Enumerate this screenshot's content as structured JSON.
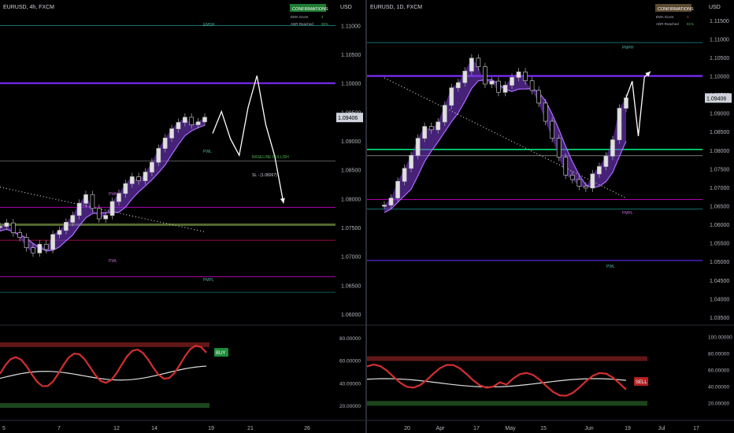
{
  "chart_data": [
    {
      "type": "line",
      "symbol_label": "EURUSD, 4h, FXCM",
      "price_axis_unit": "USD",
      "current_price_label": "1.09406",
      "y_ticks": [
        "1.11000",
        "1.10500",
        "1.10000",
        "1.09500",
        "1.09000",
        "1.08500",
        "1.08000",
        "1.07500",
        "1.07000",
        "1.06500",
        "1.06000"
      ],
      "x_ticks": [
        "5",
        "7",
        "12",
        "14",
        "19",
        "21",
        "26"
      ],
      "confirmations": {
        "title": "CONFIRMATIONS",
        "rows": [
          [
            "EMA Score",
            "4"
          ],
          [
            "ADR Reached",
            "85%"
          ]
        ]
      },
      "level_labels": [
        "EMSH",
        "PWH",
        "PWL",
        "PWL",
        "PMPL"
      ],
      "annotations": [
        "BASELINE BULLISH",
        "SL - (1.08267)"
      ],
      "osc_ticks": [
        "80.00000",
        "60.00000",
        "40.00000",
        "20.00000"
      ],
      "signal": "BUY",
      "series": [
        {
          "values": [
            1.0752,
            1.0758,
            1.0741,
            1.0733,
            1.0715,
            1.0706,
            1.0721,
            1.0712,
            1.0738,
            1.0745,
            1.0759,
            1.0771,
            1.0792,
            1.0807,
            1.0783,
            1.0765,
            1.0771,
            1.0795,
            1.0809,
            1.0826,
            1.0838,
            1.0831,
            1.0846,
            1.0863,
            1.0887,
            1.0905,
            1.0921,
            1.0932,
            1.0941,
            1.0928,
            1.0933,
            1.0941
          ]
        },
        {
          "values": [
            1.0913,
            1.0951,
            1.0904,
            1.0875,
            1.0958,
            1.1013,
            1.0928,
            1.0874,
            1.0792
          ]
        }
      ]
    },
    {
      "type": "line",
      "symbol_label": "EURUSD, 1D, FXCM",
      "price_axis_unit": "USD",
      "current_price_label": "1.09406",
      "y_ticks": [
        "1.11500",
        "1.11000",
        "1.10500",
        "1.10000",
        "1.09500",
        "1.09000",
        "1.08500",
        "1.08000",
        "1.07500",
        "1.07000",
        "1.06500",
        "1.06000",
        "1.05500",
        "1.05000",
        "1.04500",
        "1.04000",
        "1.03500"
      ],
      "x_ticks": [
        "20",
        "Apr",
        "17",
        "May",
        "15",
        "Jun",
        "19",
        "Jul",
        "17"
      ],
      "confirmations": {
        "title": "CONFIRMATIONS",
        "rows": [
          [
            "EMA Score",
            "0"
          ],
          [
            "ADR Reached",
            "81%"
          ]
        ]
      },
      "level_labels": [
        "PMPH",
        "PMPL",
        "PWL"
      ],
      "osc_ticks": [
        "100.00000",
        "80.00000",
        "60.00000",
        "40.00000",
        "20.00000"
      ],
      "signal": "SELL",
      "series": [
        {
          "values": [
            1.0652,
            1.0671,
            1.0716,
            1.0751,
            1.0786,
            1.0832,
            1.0864,
            1.0855,
            1.0876,
            1.0921,
            1.0968,
            1.0982,
            1.1013,
            1.1048,
            1.1025,
            1.0978,
            1.0986,
            1.0956,
            1.0975,
            1.0996,
            1.1011,
            1.0987,
            1.0961,
            1.0927,
            1.0878,
            1.0832,
            1.0781,
            1.0733,
            1.0721,
            1.0703,
            1.0698,
            1.0736,
            1.0756,
            1.0784,
            1.0828,
            1.0913,
            1.0941
          ]
        },
        {
          "values": [
            1.0941,
            1.0986,
            1.0838,
            1.0997,
            1.1012
          ]
        }
      ]
    }
  ]
}
